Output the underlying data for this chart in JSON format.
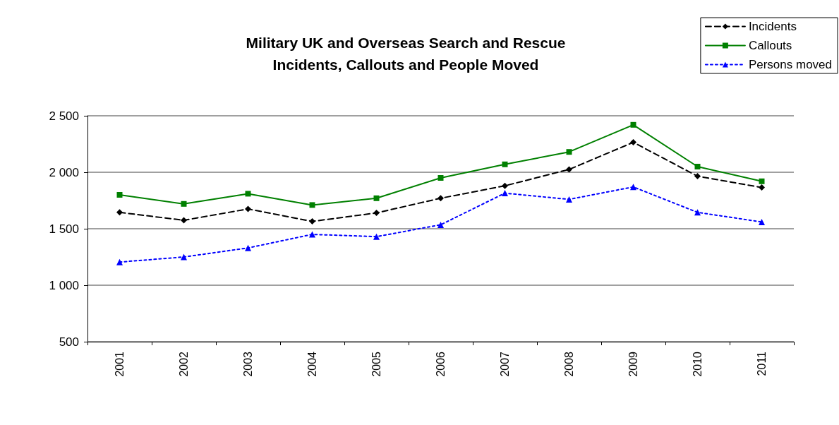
{
  "chart_data": {
    "type": "line",
    "title": "Military UK and Overseas Search and Rescue\nIncidents, Callouts and People Moved",
    "categories": [
      "2001",
      "2002",
      "2003",
      "2004",
      "2005",
      "2006",
      "2007",
      "2008",
      "2009",
      "2010",
      "2011"
    ],
    "series": [
      {
        "name": "Incidents",
        "color": "#000000",
        "marker": "diamond",
        "line_style": "dashed",
        "values": [
          1645,
          1575,
          1675,
          1565,
          1640,
          1770,
          1880,
          2025,
          2265,
          1965,
          1865
        ]
      },
      {
        "name": "Callouts",
        "color": "#008000",
        "marker": "square",
        "line_style": "solid",
        "values": [
          1800,
          1720,
          1810,
          1710,
          1770,
          1950,
          2070,
          2180,
          2420,
          2050,
          1920
        ]
      },
      {
        "name": "Persons moved",
        "color": "#0000ff",
        "marker": "triangle",
        "line_style": "dotted",
        "values": [
          1205,
          1250,
          1330,
          1450,
          1430,
          1535,
          1815,
          1760,
          1870,
          1645,
          1560
        ]
      }
    ],
    "ylim": [
      500,
      2500
    ],
    "yticks": [
      {
        "value": 500,
        "label": "500"
      },
      {
        "value": 1000,
        "label": "1 000"
      },
      {
        "value": 1500,
        "label": "1 500"
      },
      {
        "value": 2000,
        "label": "2 000"
      },
      {
        "value": 2500,
        "label": "2 500"
      }
    ],
    "grid": "y",
    "legend": "top right"
  }
}
